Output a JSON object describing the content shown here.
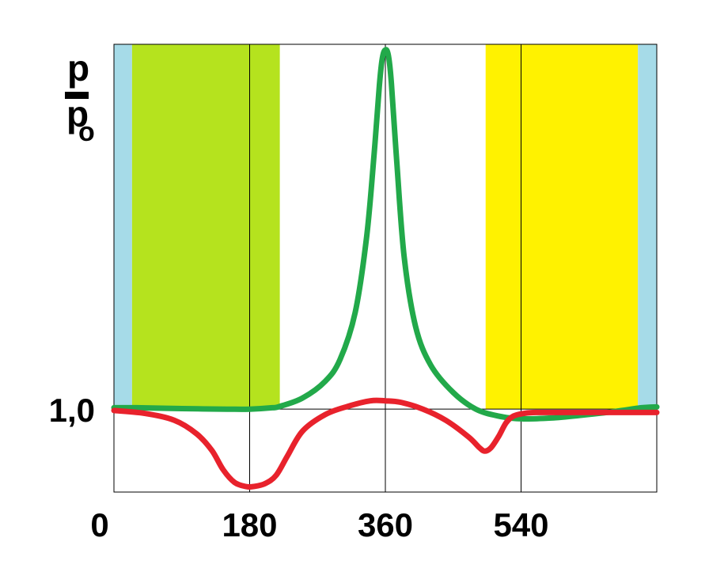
{
  "chart_data": {
    "type": "line",
    "ylabel": {
      "numerator": "p",
      "denominator": "p",
      "subscript": "o"
    },
    "x_ticks": [
      {
        "value": 0,
        "label": "0"
      },
      {
        "value": 180,
        "label": "180"
      },
      {
        "value": 360,
        "label": "360"
      },
      {
        "value": 540,
        "label": "540"
      }
    ],
    "y_ticks": [
      {
        "value": 1.0,
        "label": "1,0"
      }
    ],
    "xlim": [
      0,
      720
    ],
    "ylim": [
      0.7,
      2.32
    ],
    "grid_x": [
      180,
      360,
      540,
      720
    ],
    "grid_y": [
      1.0
    ],
    "bands": [
      {
        "x_start": 0,
        "x_end": 24,
        "y_top": 2.32,
        "y_bottom": 1.0,
        "color": "#a6dbe8"
      },
      {
        "x_start": 24,
        "x_end": 220,
        "y_top": 2.32,
        "y_bottom": 1.0,
        "color": "#b5e31e"
      },
      {
        "x_start": 493,
        "x_end": 695,
        "y_top": 2.32,
        "y_bottom": 1.0,
        "color": "#fff200"
      },
      {
        "x_start": 695,
        "x_end": 720,
        "y_top": 2.32,
        "y_bottom": 1.0,
        "color": "#a6dbe8"
      }
    ],
    "series": [
      {
        "color": "#22a94a",
        "x": [
          0,
          30,
          90,
          150,
          180,
          210,
          220,
          250,
          280,
          300,
          320,
          335,
          345,
          352,
          356,
          360,
          364,
          368,
          375,
          385,
          400,
          420,
          450,
          480,
          510,
          540,
          580,
          620,
          660,
          700,
          720
        ],
        "y": [
          1.005,
          1.005,
          1.002,
          1.0,
          1.0,
          1.005,
          1.01,
          1.04,
          1.1,
          1.18,
          1.35,
          1.62,
          1.92,
          2.17,
          2.27,
          2.3,
          2.28,
          2.18,
          1.9,
          1.55,
          1.3,
          1.16,
          1.06,
          1.0,
          0.975,
          0.965,
          0.968,
          0.978,
          0.99,
          1.005,
          1.008
        ]
      },
      {
        "color": "#e8222c",
        "x": [
          0,
          40,
          80,
          110,
          130,
          145,
          160,
          175,
          185,
          200,
          215,
          230,
          250,
          280,
          310,
          340,
          360,
          380,
          410,
          440,
          470,
          485,
          492,
          500,
          510,
          520,
          530,
          545,
          560,
          600,
          660,
          720
        ],
        "y": [
          0.995,
          0.985,
          0.96,
          0.91,
          0.85,
          0.78,
          0.735,
          0.72,
          0.72,
          0.73,
          0.76,
          0.83,
          0.92,
          0.98,
          1.01,
          1.03,
          1.03,
          1.025,
          1.0,
          0.96,
          0.9,
          0.86,
          0.848,
          0.86,
          0.9,
          0.95,
          0.975,
          0.985,
          0.988,
          0.988,
          0.988,
          0.988
        ]
      }
    ]
  }
}
